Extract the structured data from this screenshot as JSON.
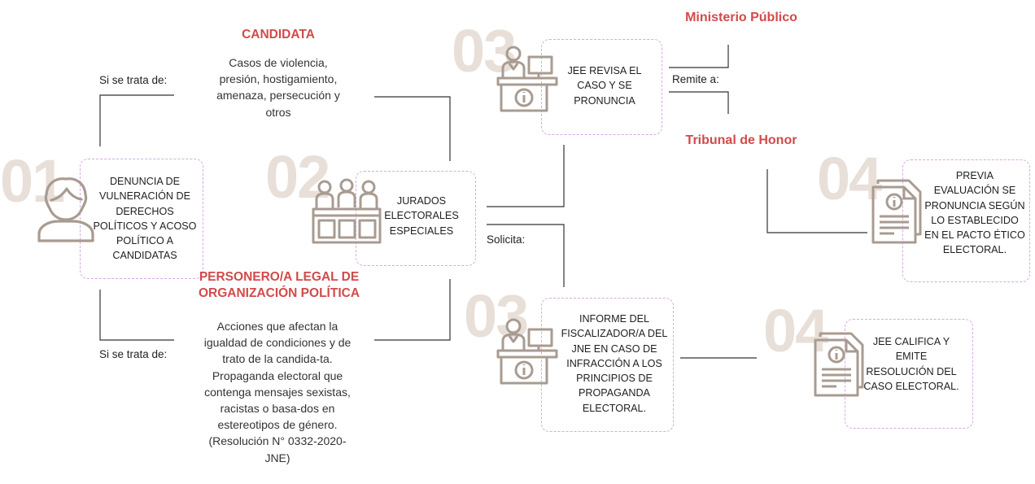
{
  "steps": {
    "s01": {
      "number": "01",
      "text": "DENUNCIA  DE VULNERACIÓN DE DERECHOS POLÍTICOS Y ACOSO POLÍTICO A CANDIDATAS"
    },
    "s02": {
      "number": "02",
      "text": "JURADOS ELECTORALES ESPECIALES"
    },
    "s03a": {
      "number": "03",
      "text": "JEE REVISA EL CASO Y SE PRONUNCIA"
    },
    "s03b": {
      "number": "03",
      "text": "INFORME DEL FISCALIZADOR/A DEL JNE EN CASO DE INFRACCIÓN A LOS PRINCIPIOS DE PROPAGANDA ELECTORAL."
    },
    "s04a": {
      "number": "04",
      "text": "PREVIA EVALUACIÓN  SE PRONUNCIA SEGÚN LO ESTABLECIDO EN EL PACTO ÉTICO ELECTORAL."
    },
    "s04b": {
      "number": "04",
      "text": "JEE CALIFICA Y EMITE RESOLUCIÓN DEL CASO ELECTORAL."
    }
  },
  "branches": {
    "candidata": {
      "heading": "CANDIDATA",
      "trigger": "Si se trata de:",
      "description": "Casos de violencia, presión, hostigamiento, amenaza, persecución y otros"
    },
    "personero": {
      "heading": "PERSONERO/A LEGAL DE ORGANIZACIÓN POLÍTICA",
      "trigger": "Si se trata de:",
      "description": "Acciones que afectan la igualdad de condiciones y de trato de la candida-ta. Propaganda electoral que contenga mensajes sexistas, racistas o basa-dos en estereotipos de género. (Resolución N° 0332-2020-JNE)"
    }
  },
  "labels": {
    "solicita": "Solicita:",
    "remite": "Remite a:",
    "ministerio": "Ministerio Público",
    "tribunal": "Tribunal de Honor"
  },
  "colors": {
    "accent_red": "#d24a4a",
    "icon_brown": "#a89b91",
    "number_beige": "#e8dfd8",
    "dashed_border": "#d7a8e6",
    "line": "#333333"
  },
  "icons": [
    "woman-avatar-icon",
    "jury-panel-icon",
    "official-desk-icon",
    "document-info-icon"
  ]
}
